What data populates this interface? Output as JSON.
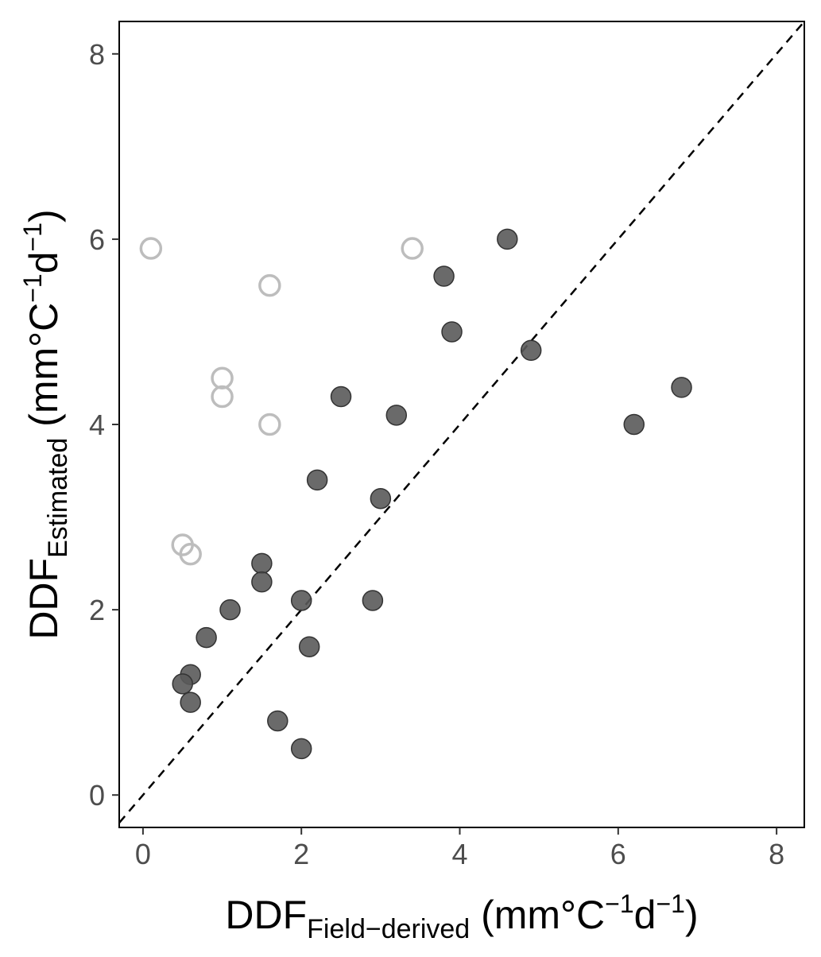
{
  "chart_data": {
    "type": "scatter",
    "xlabel": {
      "base": "DDF",
      "subscript": "Field−derived",
      "unit_pre": " (mm°C",
      "sup1": "−1",
      "unit_mid": "d",
      "sup2": "−1",
      "unit_post": ")"
    },
    "ylabel": {
      "base": "DDF",
      "subscript": "Estimated",
      "unit_pre": " (mm°C",
      "sup1": "−1",
      "unit_mid": "d",
      "sup2": "−1",
      "unit_post": ")"
    },
    "xlim": [
      -0.3,
      8.35
    ],
    "ylim": [
      -0.35,
      8.35
    ],
    "x_ticks": [
      0,
      2,
      4,
      6,
      8
    ],
    "y_ticks": [
      0,
      2,
      4,
      6,
      8
    ],
    "x_tick_labels": [
      "0",
      "2",
      "4",
      "6",
      "8"
    ],
    "y_tick_labels": [
      "0",
      "2",
      "4",
      "6",
      "8"
    ],
    "grid": false,
    "reference_line": {
      "type": "identity",
      "style": "dashed",
      "color": "#000000"
    },
    "series": [
      {
        "style": "filled",
        "color": "#5a5a5a",
        "points": [
          [
            4.6,
            6.0
          ],
          [
            3.8,
            5.6
          ],
          [
            3.9,
            5.0
          ],
          [
            4.9,
            4.8
          ],
          [
            6.8,
            4.4
          ],
          [
            6.2,
            4.0
          ],
          [
            2.5,
            4.3
          ],
          [
            3.2,
            4.1
          ],
          [
            2.2,
            3.4
          ],
          [
            3.0,
            3.2
          ],
          [
            1.5,
            2.5
          ],
          [
            1.5,
            2.3
          ],
          [
            2.0,
            2.1
          ],
          [
            2.9,
            2.1
          ],
          [
            1.1,
            2.0
          ],
          [
            0.8,
            1.7
          ],
          [
            2.1,
            1.6
          ],
          [
            0.6,
            1.3
          ],
          [
            0.5,
            1.2
          ],
          [
            0.6,
            1.0
          ],
          [
            1.7,
            0.8
          ],
          [
            2.0,
            0.5
          ]
        ]
      },
      {
        "style": "open",
        "color": "#bdbdbd",
        "points": [
          [
            0.1,
            5.9
          ],
          [
            3.4,
            5.9
          ],
          [
            1.6,
            5.5
          ],
          [
            1.0,
            4.5
          ],
          [
            1.0,
            4.3
          ],
          [
            1.6,
            4.0
          ],
          [
            0.5,
            2.7
          ],
          [
            0.6,
            2.6
          ]
        ]
      }
    ]
  }
}
